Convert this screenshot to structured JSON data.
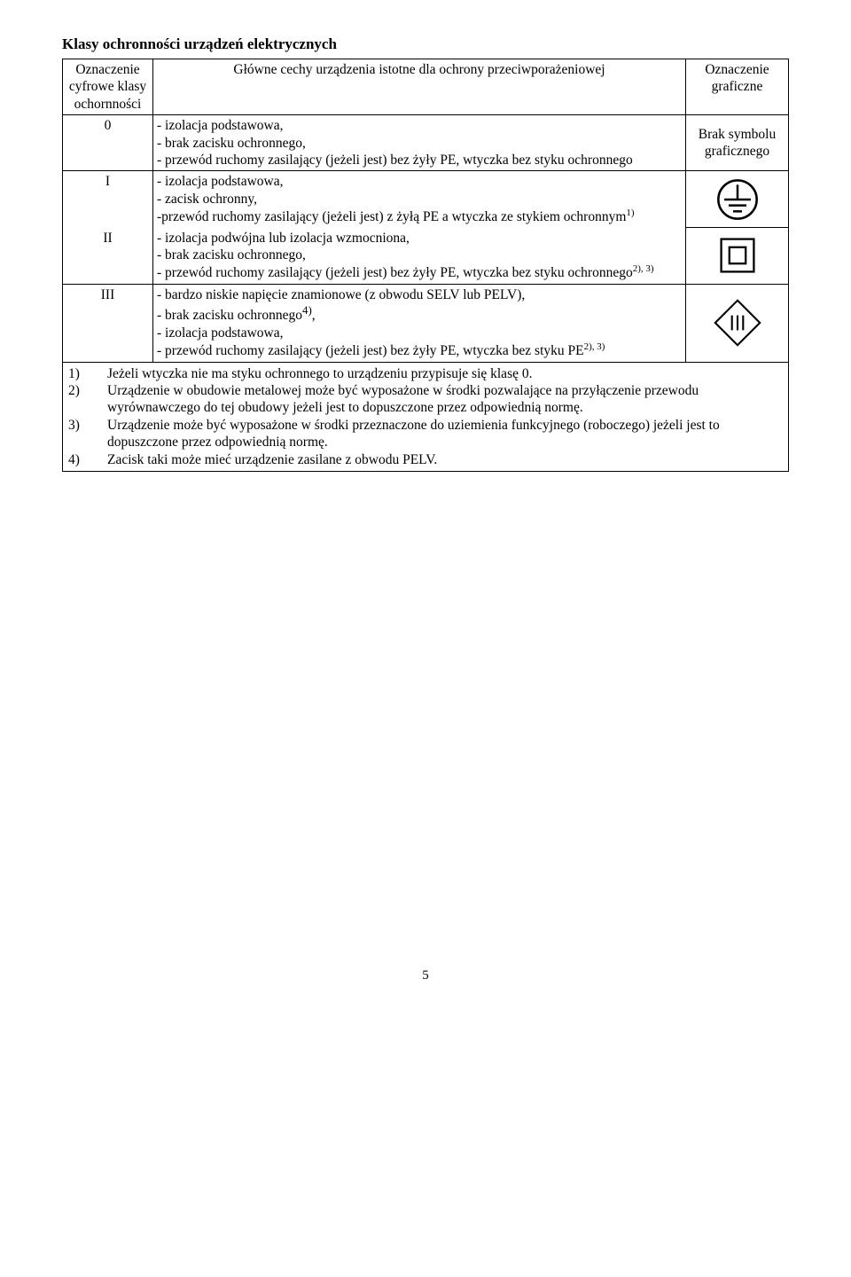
{
  "title": "Klasy ochronności urządzeń elektrycznych",
  "header": {
    "col1": "Oznaczenie cyfrowe klasy ochornności",
    "col2": "Główne cechy urządzenia istotne dla ochrony przeciwporażeniowej",
    "col3": "Oznaczenie graficzne"
  },
  "rows": [
    {
      "label": "0",
      "text": "- izolacja podstawowa,\n- brak zacisku ochronnego,\n- przewód ruchomy zasilający (jeżeli jest) bez żyły PE, wtyczka bez styku ochronnego",
      "graphic": "Brak symbolu graficznego",
      "icon": "none"
    },
    {
      "label": "I",
      "text": "- izolacja podstawowa,\n- zacisk ochronny,\n-przewód ruchomy zasilający (jeżeli jest) z żyłą PE a wtyczka ze stykiem ochronnym",
      "sup": "1)",
      "icon": "ground"
    },
    {
      "label": "II",
      "text": "- izolacja podwójna lub izolacja wzmocniona,\n- brak zacisku ochronnego,\n- przewód ruchomy zasilający (jeżeli jest) bez żyły PE, wtyczka bez styku ochronnego",
      "sup": "2), 3)",
      "icon": "double-square"
    },
    {
      "label": "III",
      "text": "- bardzo niskie napięcie znamionowe (z obwodu SELV lub PELV),\n- brak zacisku ochronnego<sup>4)</sup>,\n- izolacja podstawowa,\n- przewód ruchomy zasilający (jeżeli jest) bez żyły PE, wtyczka bez styku PE",
      "sup": "2), 3)",
      "icon": "diamond-iii"
    }
  ],
  "notes": [
    {
      "n": "1)",
      "t": "Jeżeli wtyczka nie ma styku ochronnego to urządzeniu przypisuje się klasę 0."
    },
    {
      "n": "2)",
      "t": "Urządzenie w obudowie metalowej może być wyposażone w środki pozwalające na przyłączenie przewodu wyrównawczego do tej obudowy jeżeli jest to dopuszczone przez odpowiednią normę."
    },
    {
      "n": "3)",
      "t": "Urządzenie może być wyposażone w środki przeznaczone do uziemienia funkcyjnego (roboczego) jeżeli jest to dopuszczone przez odpowiednią normę."
    },
    {
      "n": "4)",
      "t": "Zacisk taki może mieć urządzenie zasilane z obwodu PELV."
    }
  ],
  "pageNumber": "5",
  "colors": {
    "stroke": "#000000",
    "fill": "#ffffff"
  }
}
